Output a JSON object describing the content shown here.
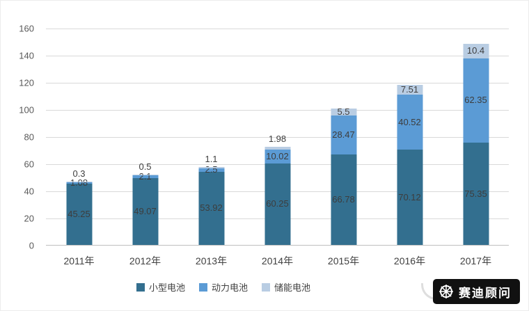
{
  "chart_data": {
    "type": "bar",
    "stacked": true,
    "title": "",
    "xlabel": "",
    "ylabel": "",
    "categories": [
      "2011年",
      "2012年",
      "2013年",
      "2014年",
      "2015年",
      "2016年",
      "2017年"
    ],
    "series": [
      {
        "name": "小型电池",
        "color": "#336f8f",
        "values": [
          45.25,
          49.07,
          53.92,
          60.25,
          66.78,
          70.12,
          75.35
        ]
      },
      {
        "name": "动力电池",
        "color": "#5b9bd5",
        "values": [
          1.08,
          2.1,
          2.5,
          10.02,
          28.47,
          40.52,
          62.35
        ]
      },
      {
        "name": "储能电池",
        "color": "#b9cde3",
        "values": [
          0.3,
          0.5,
          1.1,
          1.98,
          5.5,
          7.51,
          10.4
        ]
      }
    ],
    "ylim": [
      0,
      160
    ],
    "yticks": [
      0,
      20,
      40,
      60,
      80,
      100,
      120,
      140,
      160
    ],
    "grid": true,
    "legend_position": "bottom",
    "value_labels": true
  },
  "watermark": {
    "text": "赛迪顾问",
    "icon": "helm-icon"
  },
  "colors": {
    "background": "#ffffff",
    "grid": "#d9d9d9",
    "axis": "#bfbfbf",
    "tick_label": "#595959",
    "value_label": "#3d3d3d"
  }
}
